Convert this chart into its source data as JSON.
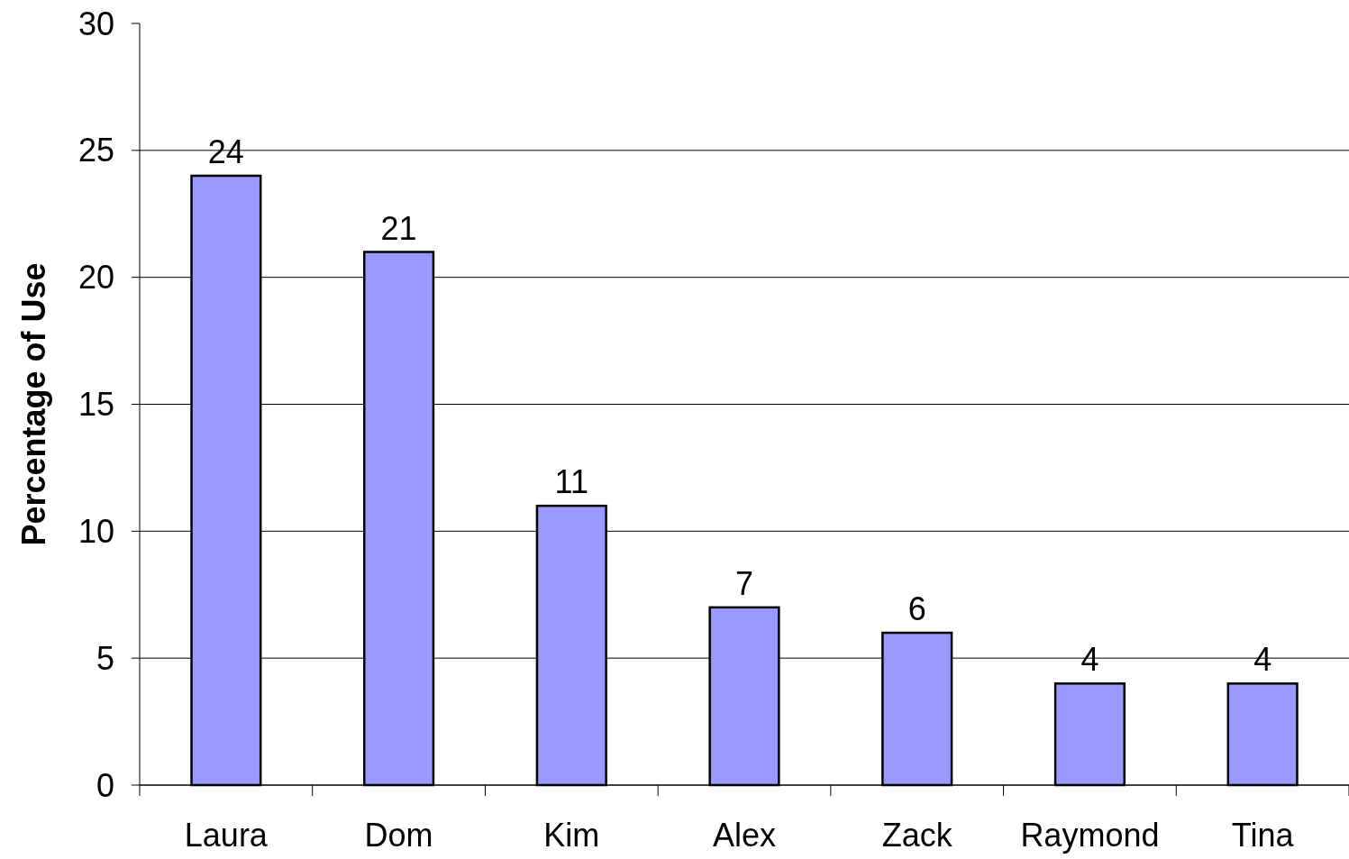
{
  "chart_data": {
    "type": "bar",
    "ylabel": "Percentage of Use",
    "categories": [
      "Laura",
      "Dom",
      "Kim",
      "Alex",
      "Zack",
      "Raymond",
      "Tina"
    ],
    "values": [
      24,
      21,
      11,
      7,
      6,
      4,
      4
    ],
    "color": "#9999ff",
    "ylim": [
      0,
      30
    ],
    "yticks": [
      0,
      5,
      10,
      15,
      20,
      25,
      30
    ],
    "grid": "y",
    "data_labels": true
  }
}
